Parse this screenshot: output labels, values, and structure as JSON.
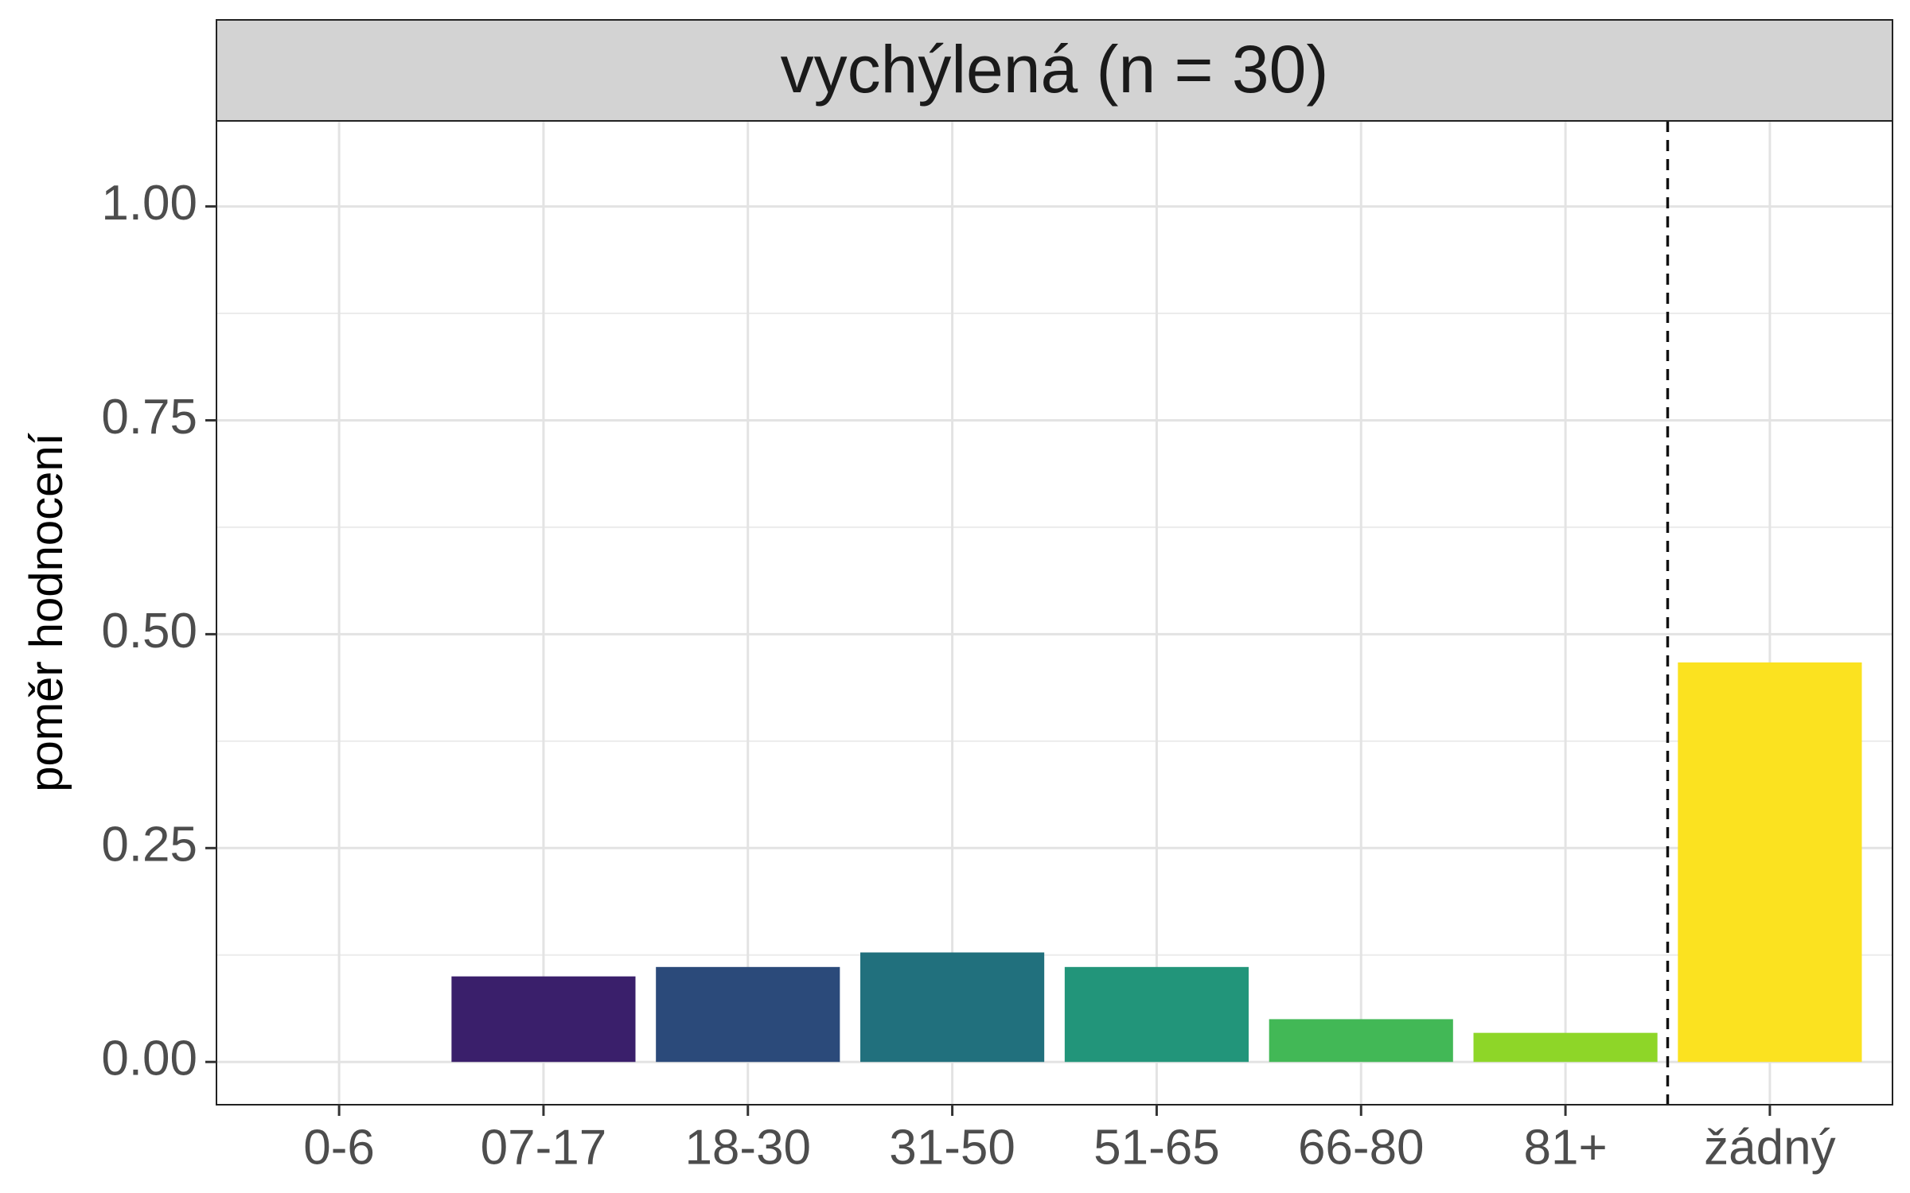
{
  "chart_data": {
    "type": "bar",
    "title": "vychýlená (n = 30)",
    "xlabel": "",
    "ylabel": "poměr hodnocení",
    "categories": [
      "0-6",
      "07-17",
      "18-30",
      "31-50",
      "51-65",
      "66-80",
      "81+",
      "žádný"
    ],
    "values": [
      0.0,
      0.1,
      0.111,
      0.128,
      0.111,
      0.05,
      0.034,
      0.467
    ],
    "colors": [
      "#440154",
      "#3a1f6b",
      "#2b4a7a",
      "#21707d",
      "#22957a",
      "#42b856",
      "#8ed628",
      "#fbe220"
    ],
    "yticks": [
      "0.00",
      "0.25",
      "0.50",
      "0.75",
      "1.00"
    ],
    "ytick_values": [
      0,
      0.25,
      0.5,
      0.75,
      1.0
    ],
    "ylim": [
      -0.05,
      1.1
    ],
    "grid": true,
    "reference_line": {
      "between_categories": [
        "81+",
        "žádný"
      ],
      "style": "dashed"
    }
  }
}
